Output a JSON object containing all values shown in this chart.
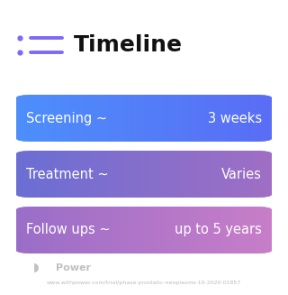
{
  "title": "Timeline",
  "title_fontsize": 18,
  "title_color": "#111111",
  "title_bold": true,
  "icon_color": "#7c6af7",
  "background_color": "#ffffff",
  "rows": [
    {
      "left_text": "Screening ~",
      "right_text": "3 weeks",
      "gradient_start": "#4d8ffc",
      "gradient_end": "#5a6df5",
      "text_color": "#ffffff",
      "fontsize": 10.5
    },
    {
      "left_text": "Treatment ~",
      "right_text": "Varies",
      "gradient_start": "#6b6fd4",
      "gradient_end": "#a06ec4",
      "text_color": "#ffffff",
      "fontsize": 10.5
    },
    {
      "left_text": "Follow ups ~",
      "right_text": "up to 5 years",
      "gradient_start": "#9a6ec8",
      "gradient_end": "#c87ec8",
      "text_color": "#ffffff",
      "fontsize": 10.5
    }
  ],
  "footer_logo_text": "Power",
  "footer_url": "www.withpower.com/trial/phase-prostatic-neoplasms-10-2020-01857",
  "footer_fontsize": 4.5,
  "footer_color": "#bbbbbb"
}
